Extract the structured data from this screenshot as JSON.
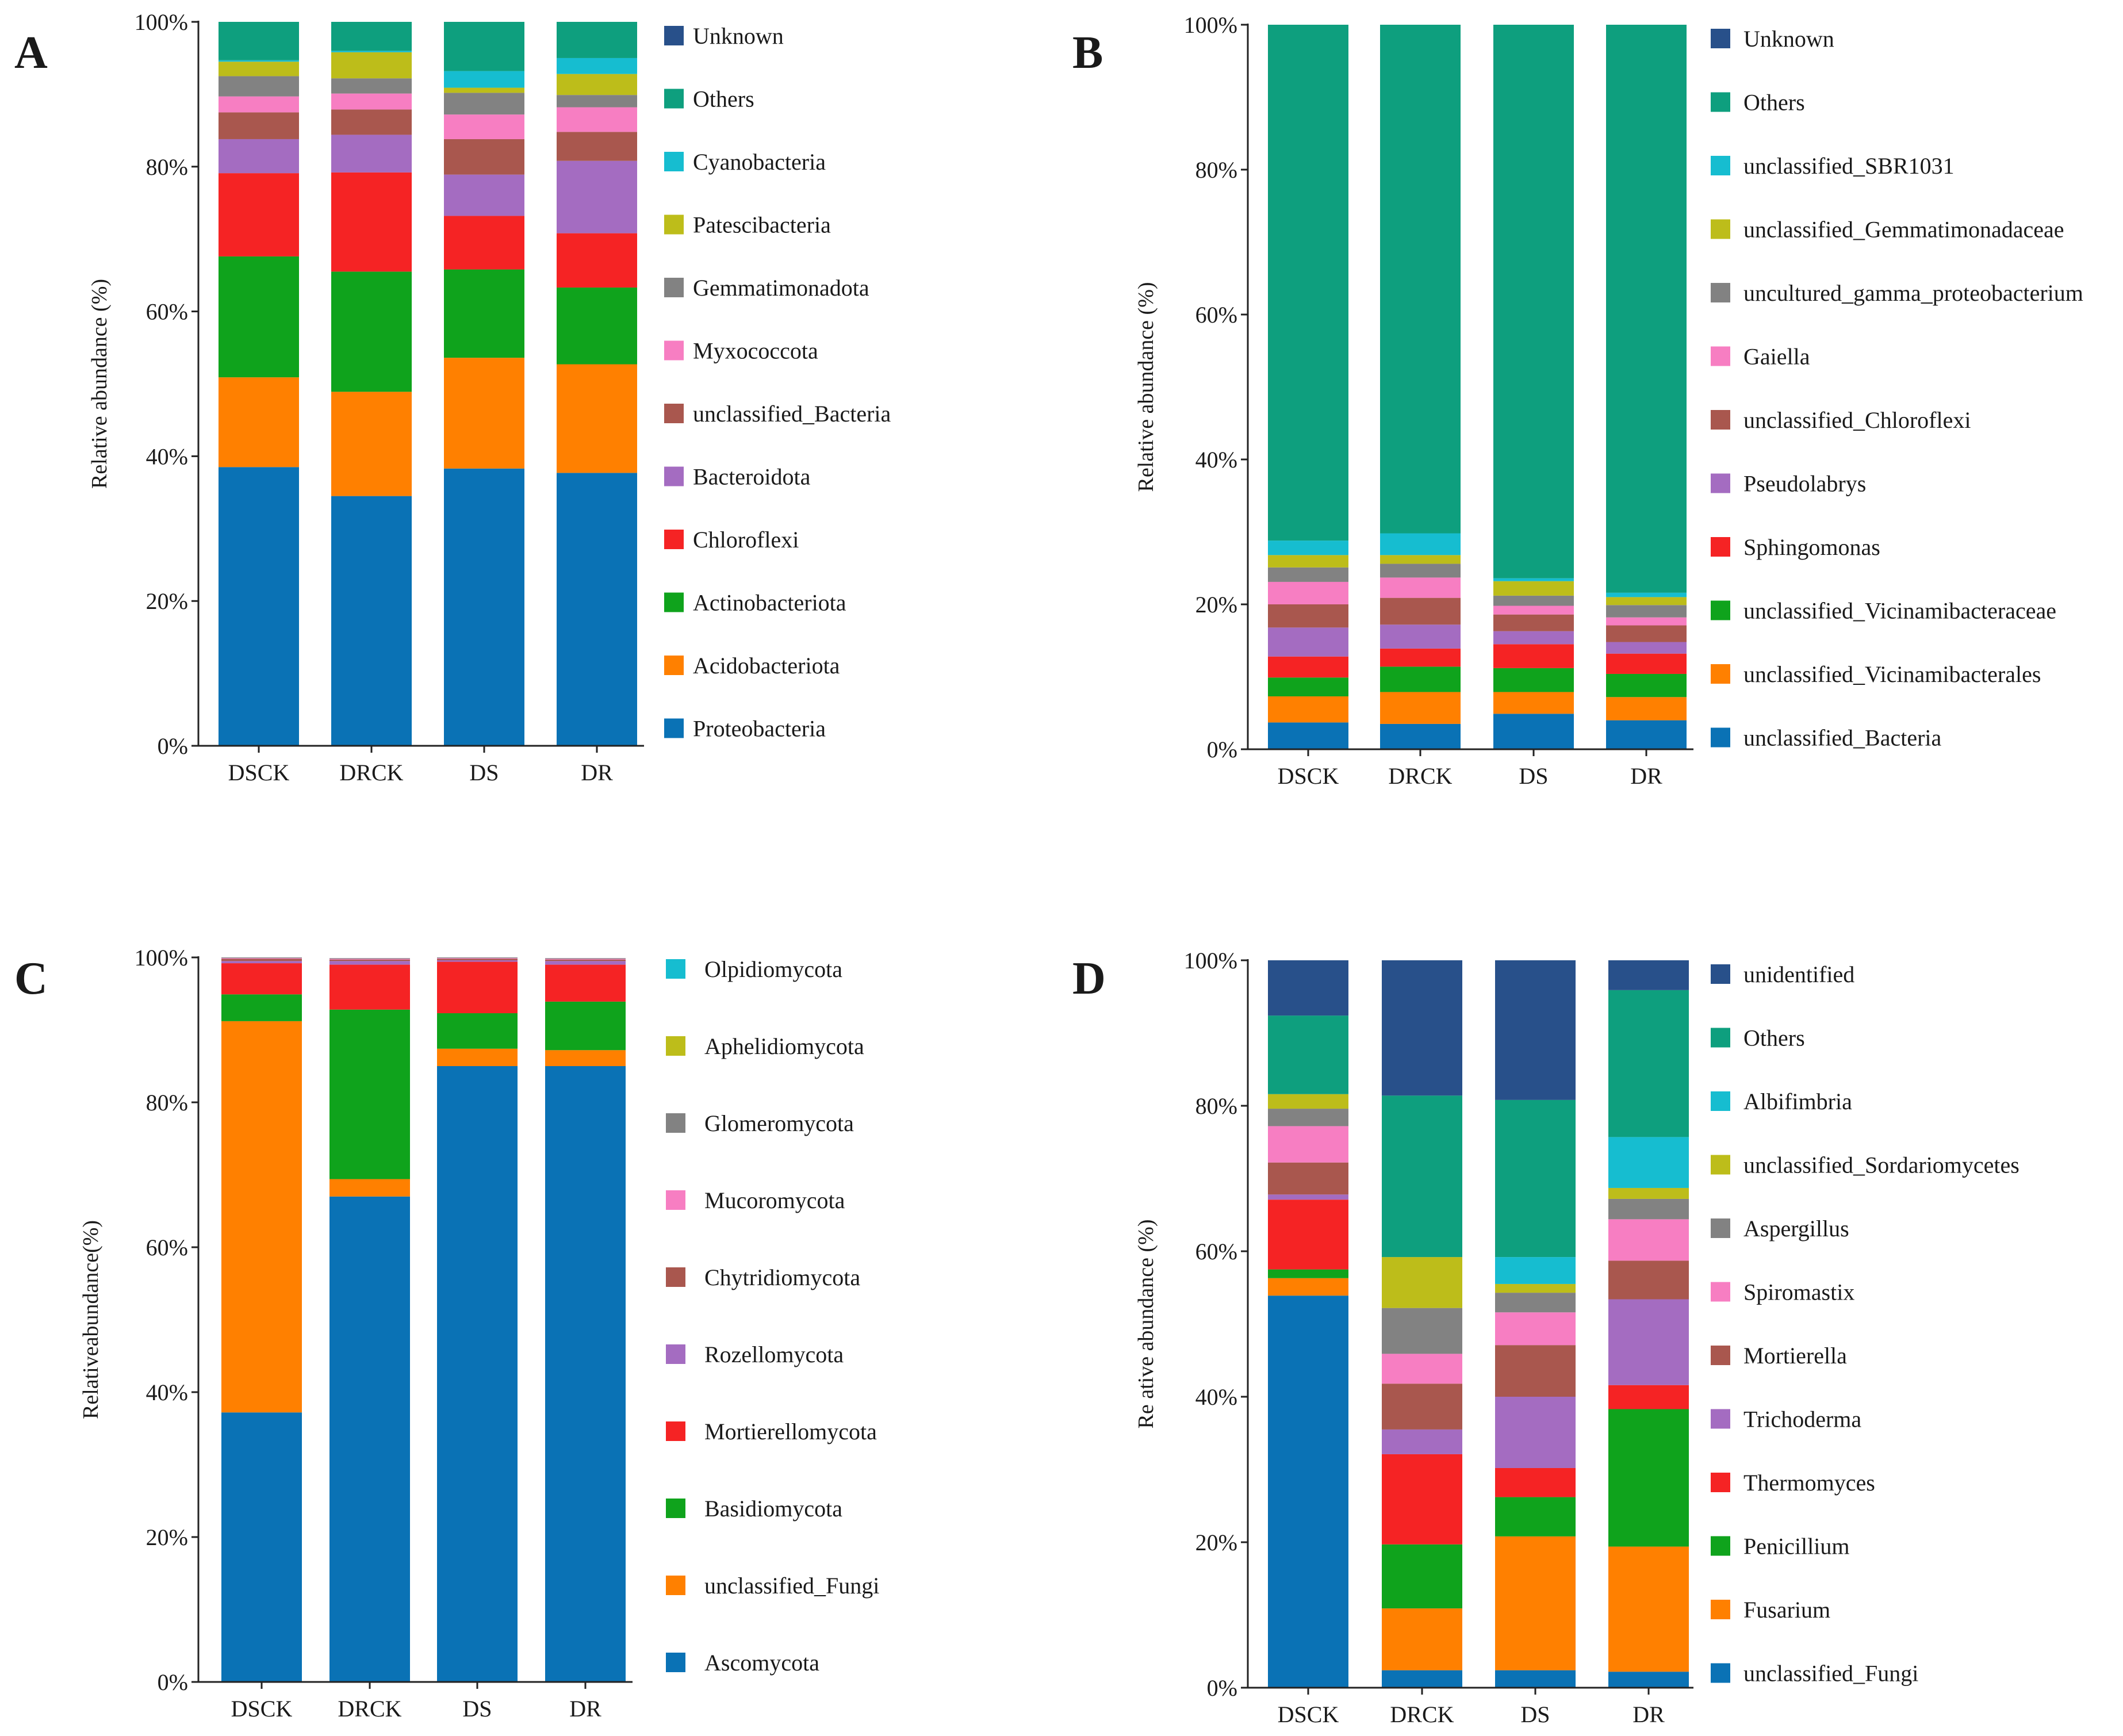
{
  "chart_data": [
    {
      "panel": "A",
      "type": "bar",
      "stacked": true,
      "ylabel": "Relative abundance (%)",
      "ylim": [
        0,
        100
      ],
      "yticks": [
        "0%",
        "20%",
        "40%",
        "60%",
        "80%",
        "100%"
      ],
      "categories": [
        "DSCK",
        "DRCK",
        "DS",
        "DR"
      ],
      "series": [
        {
          "name": "Proteobacteria",
          "color": "#0A72B5",
          "values": [
            38.5,
            34.5,
            38.3,
            37.7
          ]
        },
        {
          "name": "Acidobacteriota",
          "color": "#FF8000",
          "values": [
            12.4,
            14.4,
            15.3,
            15.0
          ]
        },
        {
          "name": "Actinobacteriota",
          "color": "#0FA31C",
          "values": [
            16.7,
            16.6,
            12.2,
            10.6
          ]
        },
        {
          "name": "Chloroflexi",
          "color": "#F52324",
          "values": [
            11.5,
            13.7,
            7.4,
            7.5
          ]
        },
        {
          "name": "Bacteroidota",
          "color": "#A46CC1",
          "values": [
            4.7,
            5.2,
            5.7,
            10.0
          ]
        },
        {
          "name": "unclassified_Bacteria",
          "color": "#A9574E",
          "values": [
            3.7,
            3.5,
            4.9,
            4.0
          ]
        },
        {
          "name": "Myxococcota",
          "color": "#F77EC2",
          "values": [
            2.2,
            2.2,
            3.4,
            3.4
          ]
        },
        {
          "name": "Gemmatimonadota",
          "color": "#828282",
          "values": [
            2.8,
            2.1,
            3.0,
            1.7
          ]
        },
        {
          "name": "Patescibacteria",
          "color": "#BDBD1A",
          "values": [
            2.0,
            3.6,
            0.7,
            2.9
          ]
        },
        {
          "name": "Cyanobacteria",
          "color": "#16BDD0",
          "values": [
            0.2,
            0.2,
            2.3,
            2.2
          ]
        },
        {
          "name": "Others",
          "color": "#0E9F7E",
          "values": [
            5.3,
            4.0,
            6.8,
            5.0
          ]
        },
        {
          "name": "Unknown",
          "color": "#28508A",
          "values": [
            0.0,
            0.0,
            0.0,
            0.0
          ]
        }
      ]
    },
    {
      "panel": "B",
      "type": "bar",
      "stacked": true,
      "ylabel": "Relative abundance (%)",
      "ylim": [
        0,
        100
      ],
      "yticks": [
        "0%",
        "20%",
        "40%",
        "60%",
        "80%",
        "100%"
      ],
      "categories": [
        "DSCK",
        "DRCK",
        "DS",
        "DR"
      ],
      "series": [
        {
          "name": "unclassified_Bacteria",
          "color": "#0A72B5",
          "values": [
            3.7,
            3.5,
            4.9,
            4.0
          ]
        },
        {
          "name": "unclassified_Vicinamibacterales",
          "color": "#FF8000",
          "values": [
            3.6,
            4.4,
            3.0,
            3.2
          ]
        },
        {
          "name": "unclassified_Vicinamibacteraceae",
          "color": "#0FA31C",
          "values": [
            2.6,
            3.5,
            3.3,
            3.2
          ]
        },
        {
          "name": "Sphingomonas",
          "color": "#F52324",
          "values": [
            2.9,
            2.5,
            3.3,
            2.8
          ]
        },
        {
          "name": "Pseudolabrys",
          "color": "#A46CC1",
          "values": [
            4.0,
            3.3,
            1.8,
            1.6
          ]
        },
        {
          "name": "unclassified_Chloroflexi",
          "color": "#A9574E",
          "values": [
            3.2,
            3.7,
            2.3,
            2.3
          ]
        },
        {
          "name": "Gaiella",
          "color": "#F77EC2",
          "values": [
            3.1,
            2.8,
            1.2,
            1.1
          ]
        },
        {
          "name": "uncultured_gamma_proteobacterium",
          "color": "#828282",
          "values": [
            2.0,
            1.9,
            1.4,
            1.7
          ]
        },
        {
          "name": "unclassified_Gemmatimonadaceae",
          "color": "#BDBD1A",
          "values": [
            1.7,
            1.2,
            2.0,
            1.1
          ]
        },
        {
          "name": "unclassified_SBR1031",
          "color": "#16BDD0",
          "values": [
            2.0,
            3.0,
            0.4,
            0.6
          ]
        },
        {
          "name": "Others",
          "color": "#0E9F7E",
          "values": [
            71.2,
            70.2,
            76.4,
            78.4
          ]
        },
        {
          "name": "Unknown",
          "color": "#28508A",
          "values": [
            0.0,
            0.0,
            0.0,
            0.0
          ]
        }
      ]
    },
    {
      "panel": "C",
      "type": "bar",
      "stacked": true,
      "ylabel": "Relativeabundance(%)",
      "ylim": [
        0,
        100
      ],
      "yticks": [
        "0%",
        "20%",
        "40%",
        "60%",
        "80%",
        "100%"
      ],
      "categories": [
        "DSCK",
        "DRCK",
        "DS",
        "DR"
      ],
      "series": [
        {
          "name": "Ascomycota",
          "color": "#0A72B5",
          "values": [
            37.2,
            67.0,
            85.0,
            85.0
          ]
        },
        {
          "name": "unclassified_Fungi",
          "color": "#FF8000",
          "values": [
            54.0,
            2.4,
            2.4,
            2.2
          ]
        },
        {
          "name": "Basidiomycota",
          "color": "#0FA31C",
          "values": [
            3.7,
            23.4,
            4.9,
            6.7
          ]
        },
        {
          "name": "Mortierellomycota",
          "color": "#F52324",
          "values": [
            4.3,
            6.2,
            7.1,
            5.1
          ]
        },
        {
          "name": "Rozellomycota",
          "color": "#A46CC1",
          "values": [
            0.3,
            0.5,
            0.2,
            0.5
          ]
        },
        {
          "name": "Chytridiomycota",
          "color": "#A9574E",
          "values": [
            0.3,
            0.2,
            0.2,
            0.2
          ]
        },
        {
          "name": "Mucoromycota",
          "color": "#F77EC2",
          "values": [
            0.1,
            0.1,
            0.1,
            0.1
          ]
        },
        {
          "name": "Glomeromycota",
          "color": "#828282",
          "values": [
            0.1,
            0.1,
            0.1,
            0.1
          ]
        },
        {
          "name": "Aphelidiomycota",
          "color": "#BDBD1A",
          "values": [
            0.0,
            0.0,
            0.0,
            0.0
          ]
        },
        {
          "name": "Olpidiomycota",
          "color": "#16BDD0",
          "values": [
            0.0,
            0.0,
            0.0,
            0.0
          ]
        }
      ]
    },
    {
      "panel": "D",
      "type": "bar",
      "stacked": true,
      "ylabel": "Re ative abundance (%)",
      "ylim": [
        0,
        100
      ],
      "yticks": [
        "0%",
        "20%",
        "40%",
        "60%",
        "80%",
        "100%"
      ],
      "categories": [
        "DSCK",
        "DRCK",
        "DS",
        "DR"
      ],
      "series": [
        {
          "name": "unclassified_Fungi",
          "color": "#0A72B5",
          "values": [
            53.9,
            2.4,
            2.4,
            2.2
          ]
        },
        {
          "name": "Fusarium",
          "color": "#FF8000",
          "values": [
            2.4,
            8.5,
            18.4,
            17.2
          ]
        },
        {
          "name": "Penicillium",
          "color": "#0FA31C",
          "values": [
            1.2,
            8.8,
            5.4,
            18.9
          ]
        },
        {
          "name": "Thermomyces",
          "color": "#F52324",
          "values": [
            9.6,
            12.4,
            4.0,
            3.3
          ]
        },
        {
          "name": "Trichoderma",
          "color": "#A46CC1",
          "values": [
            0.7,
            3.4,
            9.8,
            11.8
          ]
        },
        {
          "name": "Mortierella",
          "color": "#A9574E",
          "values": [
            4.4,
            6.3,
            7.1,
            5.3
          ]
        },
        {
          "name": "Spiromastix",
          "color": "#F77EC2",
          "values": [
            5.0,
            4.1,
            4.5,
            5.7
          ]
        },
        {
          "name": "Aspergillus",
          "color": "#828282",
          "values": [
            2.4,
            6.3,
            2.7,
            2.8
          ]
        },
        {
          "name": "unclassified_Sordariomycetes",
          "color": "#BDBD1A",
          "values": [
            2.0,
            7.0,
            1.2,
            1.5
          ]
        },
        {
          "name": "Albifimbria",
          "color": "#16BDD0",
          "values": [
            0.0,
            0.0,
            3.7,
            7.0
          ]
        },
        {
          "name": "Others",
          "color": "#0E9F7E",
          "values": [
            10.8,
            22.2,
            21.6,
            20.2
          ]
        },
        {
          "name": "unidentified",
          "color": "#28508A",
          "values": [
            7.6,
            18.6,
            19.2,
            4.1
          ]
        }
      ]
    }
  ]
}
